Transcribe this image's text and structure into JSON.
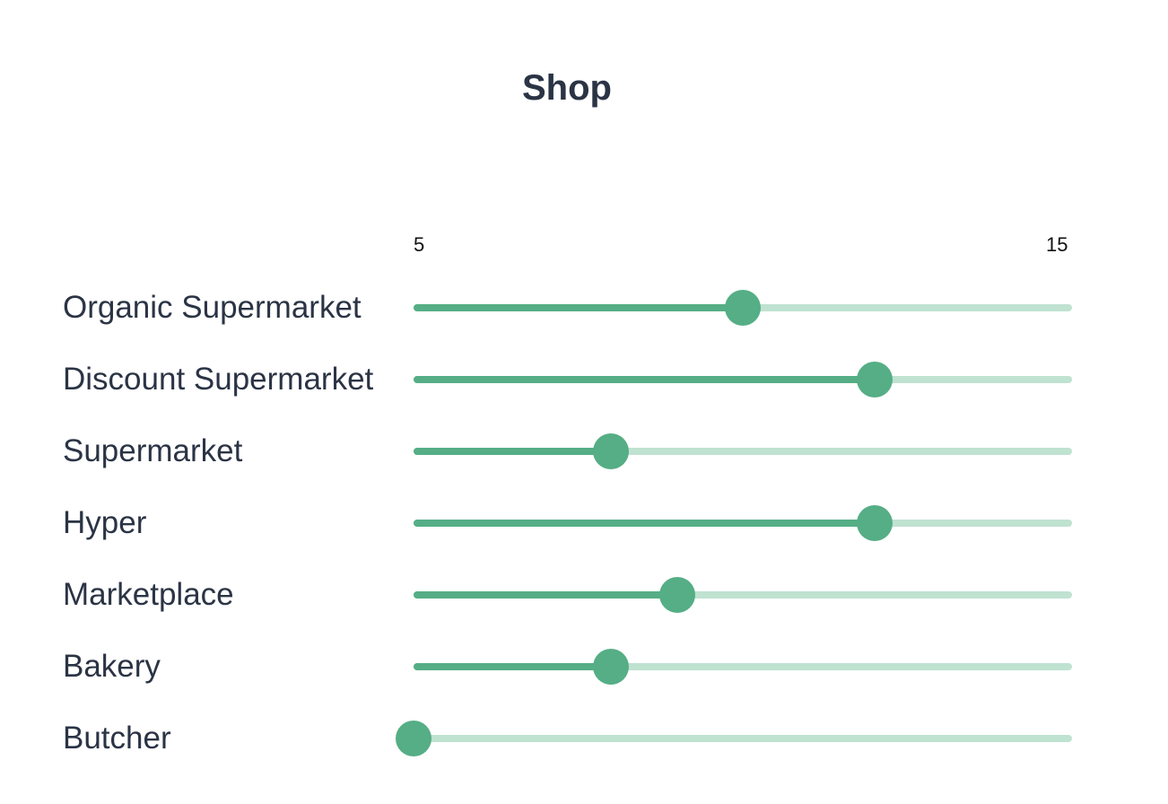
{
  "title": "Shop",
  "scale": {
    "min": 5,
    "max": 15,
    "min_label": "5",
    "max_label": "15"
  },
  "colors": {
    "fill": "#55ae85",
    "track": "#bfe2d1",
    "text": "#2b3445"
  },
  "sliders": [
    {
      "label": "Organic Supermarket",
      "value": 10
    },
    {
      "label": "Discount Supermarket",
      "value": 12
    },
    {
      "label": "Supermarket",
      "value": 8
    },
    {
      "label": "Hyper",
      "value": 12
    },
    {
      "label": "Marketplace",
      "value": 9
    },
    {
      "label": "Bakery",
      "value": 8
    },
    {
      "label": "Butcher",
      "value": 5
    }
  ]
}
